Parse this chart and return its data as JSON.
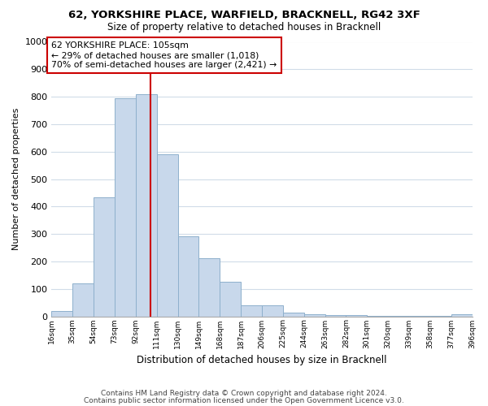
{
  "title1": "62, YORKSHIRE PLACE, WARFIELD, BRACKNELL, RG42 3XF",
  "title2": "Size of property relative to detached houses in Bracknell",
  "xlabel": "Distribution of detached houses by size in Bracknell",
  "ylabel": "Number of detached properties",
  "bin_edges": [
    16,
    35,
    54,
    73,
    92,
    111,
    130,
    149,
    168,
    187,
    206,
    225,
    244,
    263,
    282,
    301,
    320,
    339,
    358,
    377,
    396
  ],
  "bar_heights": [
    18,
    120,
    433,
    793,
    810,
    590,
    290,
    213,
    125,
    40,
    40,
    12,
    8,
    5,
    3,
    2,
    1,
    1,
    1,
    8
  ],
  "bar_color": "#c8d8eb",
  "bar_edge_color": "#8eb0cc",
  "tick_labels": [
    "16sqm",
    "35sqm",
    "54sqm",
    "73sqm",
    "92sqm",
    "111sqm",
    "130sqm",
    "149sqm",
    "168sqm",
    "187sqm",
    "206sqm",
    "225sqm",
    "244sqm",
    "263sqm",
    "282sqm",
    "301sqm",
    "320sqm",
    "339sqm",
    "358sqm",
    "377sqm",
    "396sqm"
  ],
  "ylim": [
    0,
    1000
  ],
  "yticks": [
    0,
    100,
    200,
    300,
    400,
    500,
    600,
    700,
    800,
    900,
    1000
  ],
  "vline_x": 105,
  "vline_color": "#cc0000",
  "annotation_text": "62 YORKSHIRE PLACE: 105sqm\n← 29% of detached houses are smaller (1,018)\n70% of semi-detached houses are larger (2,421) →",
  "annotation_box_color": "#ffffff",
  "annotation_box_edge": "#cc0000",
  "footer1": "Contains HM Land Registry data © Crown copyright and database right 2024.",
  "footer2": "Contains public sector information licensed under the Open Government Licence v3.0.",
  "bg_color": "#ffffff",
  "grid_color": "#d0dce8"
}
